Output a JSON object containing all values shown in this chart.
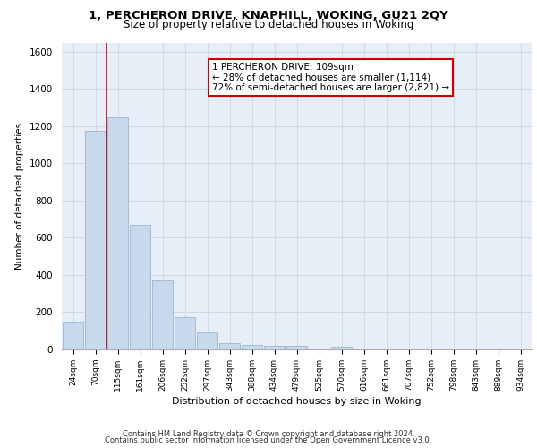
{
  "title1": "1, PERCHERON DRIVE, KNAPHILL, WOKING, GU21 2QY",
  "title2": "Size of property relative to detached houses in Woking",
  "xlabel": "Distribution of detached houses by size in Woking",
  "ylabel": "Number of detached properties",
  "categories": [
    "24sqm",
    "70sqm",
    "115sqm",
    "161sqm",
    "206sqm",
    "252sqm",
    "297sqm",
    "343sqm",
    "388sqm",
    "434sqm",
    "479sqm",
    "525sqm",
    "570sqm",
    "616sqm",
    "661sqm",
    "707sqm",
    "752sqm",
    "798sqm",
    "843sqm",
    "889sqm",
    "934sqm"
  ],
  "values": [
    150,
    1175,
    1250,
    670,
    370,
    175,
    90,
    35,
    25,
    20,
    20,
    0,
    15,
    0,
    0,
    0,
    0,
    0,
    0,
    0,
    0
  ],
  "bar_color": "#c8d9ee",
  "bar_edge_color": "#a0bcd8",
  "annotation_text": "1 PERCHERON DRIVE: 109sqm\n← 28% of detached houses are smaller (1,114)\n72% of semi-detached houses are larger (2,821) →",
  "annotation_box_color": "#ffffff",
  "annotation_box_edge": "#cc0000",
  "vline_color": "#cc0000",
  "ylim": [
    0,
    1650
  ],
  "yticks": [
    0,
    200,
    400,
    600,
    800,
    1000,
    1200,
    1400,
    1600
  ],
  "grid_color": "#d0d8e4",
  "bg_color": "#e8eef8",
  "footer1": "Contains HM Land Registry data © Crown copyright and database right 2024.",
  "footer2": "Contains public sector information licensed under the Open Government Licence v3.0."
}
